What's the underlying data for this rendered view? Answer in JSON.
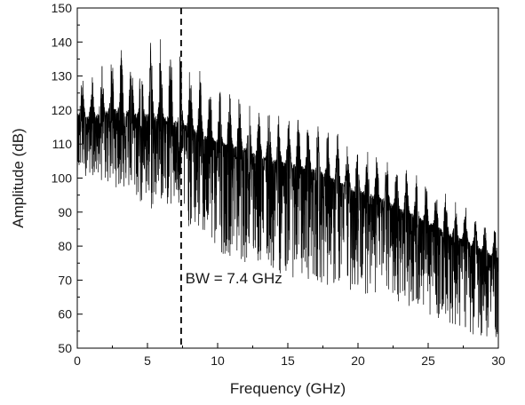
{
  "chart_data": {
    "type": "line",
    "title": "",
    "xlabel": "Frequency (GHz)",
    "ylabel": "Amplitude (dB)",
    "xlim": [
      0,
      30
    ],
    "ylim": [
      50,
      150
    ],
    "xticks": [
      0,
      5,
      10,
      15,
      20,
      25,
      30
    ],
    "yticks": [
      50,
      60,
      70,
      80,
      90,
      100,
      110,
      120,
      130,
      140,
      150
    ],
    "grid": false,
    "legend": "none",
    "line_color": "#000000",
    "series": [
      {
        "description_points": "dense noisy spectrum; approximate envelope of the trace",
        "x": [
          0,
          1,
          2,
          3,
          4,
          5,
          6,
          7,
          8,
          9,
          10,
          11,
          12,
          13,
          14,
          15,
          16,
          17,
          18,
          19,
          20,
          21,
          22,
          23,
          24,
          25,
          26,
          27,
          28,
          29,
          30
        ],
        "upper": [
          131,
          130,
          136,
          141,
          140,
          141,
          143,
          140,
          135,
          131,
          128,
          126,
          124,
          122,
          120,
          119,
          118,
          117,
          115,
          112,
          110,
          109,
          107,
          104,
          102,
          99,
          97,
          94,
          92,
          88,
          85
        ],
        "center": [
          117,
          116,
          117,
          117,
          116,
          115,
          114,
          113,
          112,
          110,
          108,
          107,
          106,
          104,
          103,
          102,
          101,
          100,
          98,
          96,
          94,
          93,
          91,
          89,
          87,
          85,
          83,
          81,
          79,
          77,
          75
        ],
        "lower": [
          100,
          101,
          98,
          97,
          95,
          88,
          93,
          90,
          85,
          82,
          78,
          77,
          75,
          74,
          72,
          71,
          70,
          70,
          68,
          67,
          66,
          66,
          65,
          63,
          62,
          60,
          58,
          56,
          54,
          53,
          52
        ]
      }
    ],
    "annotations": [
      {
        "type": "vline",
        "x": 7.4,
        "style": "dashed"
      },
      {
        "type": "text",
        "text": "BW = 7.4 GHz",
        "x": 7.7,
        "y": 69
      }
    ]
  }
}
